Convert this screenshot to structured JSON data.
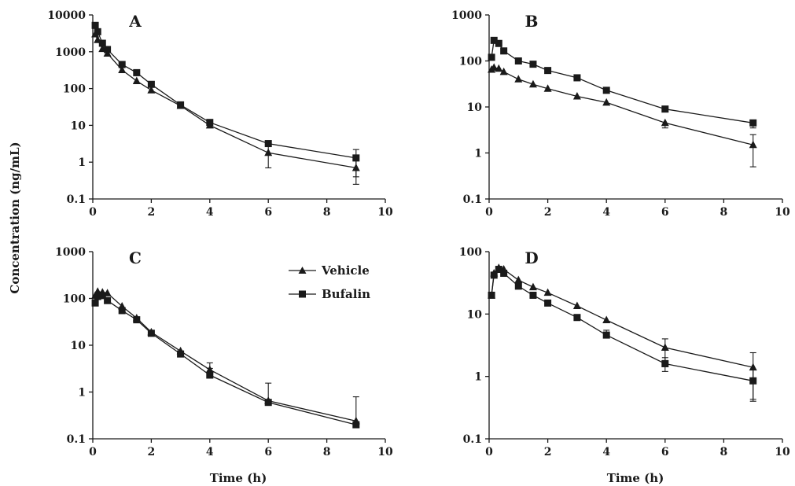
{
  "figure": {
    "y_axis_title": "Concentration (ng/mL)",
    "x_axis_title": "Time (h)"
  },
  "legend": {
    "position": "inside panel C, top-right",
    "entries": [
      {
        "label": "Vehicle",
        "marker": "triangle-icon"
      },
      {
        "label": "Bufalin",
        "marker": "square-icon"
      }
    ]
  },
  "chart_data": [
    {
      "panel": "A",
      "type": "line",
      "y_scale": "log",
      "xlim": [
        0,
        10
      ],
      "ylim": [
        0.1,
        10000
      ],
      "x_ticks": [
        "0",
        "2",
        "4",
        "6",
        "8",
        "10"
      ],
      "y_ticks": [
        "0.1",
        "1",
        "10",
        "100",
        "1000",
        "10000"
      ],
      "series": [
        {
          "name": "Vehicle",
          "marker": "triangle",
          "x": [
            0.083,
            0.167,
            0.33,
            0.5,
            1,
            1.5,
            2,
            3,
            4,
            6,
            9
          ],
          "y": [
            3000,
            2100,
            1200,
            900,
            320,
            160,
            90,
            34,
            10,
            1.8,
            0.7
          ],
          "err": [
            600,
            400,
            200,
            150,
            60,
            25,
            15,
            5,
            1.5,
            1.1,
            0.45
          ]
        },
        {
          "name": "Bufalin",
          "marker": "square",
          "x": [
            0.083,
            0.167,
            0.33,
            0.5,
            1,
            1.5,
            2,
            3,
            4,
            6,
            9
          ],
          "y": [
            5200,
            3500,
            1700,
            1150,
            450,
            270,
            130,
            36,
            12,
            3.2,
            1.3
          ],
          "err": [
            800,
            500,
            250,
            200,
            80,
            40,
            20,
            5,
            2,
            0.5,
            0.9
          ]
        }
      ]
    },
    {
      "panel": "B",
      "type": "line",
      "y_scale": "log",
      "xlim": [
        0,
        10
      ],
      "ylim": [
        0.1,
        1000
      ],
      "x_ticks": [
        "0",
        "2",
        "4",
        "6",
        "8",
        "10"
      ],
      "y_ticks": [
        "0.1",
        "1",
        "10",
        "100",
        "1000"
      ],
      "series": [
        {
          "name": "Vehicle",
          "marker": "triangle",
          "x": [
            0.083,
            0.167,
            0.33,
            0.5,
            1,
            1.5,
            2,
            3,
            4,
            6,
            9
          ],
          "y": [
            65,
            72,
            68,
            58,
            40,
            31,
            25,
            17,
            12.5,
            4.5,
            1.5
          ],
          "err": [
            8,
            8,
            6,
            5,
            4,
            3,
            2.5,
            1.5,
            1.2,
            1,
            1
          ]
        },
        {
          "name": "Bufalin",
          "marker": "square",
          "x": [
            0.083,
            0.167,
            0.33,
            0.5,
            1,
            1.5,
            2,
            3,
            4,
            6,
            9
          ],
          "y": [
            120,
            280,
            240,
            165,
            100,
            85,
            62,
            43,
            23,
            9,
            4.5
          ],
          "err": [
            15,
            30,
            25,
            15,
            10,
            8,
            6,
            5,
            2.5,
            1,
            1
          ]
        }
      ]
    },
    {
      "panel": "C",
      "type": "line",
      "y_scale": "log",
      "xlim": [
        0,
        10
      ],
      "ylim": [
        0.1,
        1000
      ],
      "x_ticks": [
        "0",
        "2",
        "4",
        "6",
        "8",
        "10"
      ],
      "y_ticks": [
        "0.1",
        "1",
        "10",
        "100",
        "1000"
      ],
      "series": [
        {
          "name": "Vehicle",
          "marker": "triangle",
          "x": [
            0.083,
            0.167,
            0.33,
            0.5,
            1,
            1.5,
            2,
            3,
            4,
            6,
            9
          ],
          "y": [
            115,
            140,
            135,
            130,
            68,
            38,
            19,
            7.5,
            3,
            0.65,
            0.24
          ],
          "err": [
            15,
            15,
            12,
            12,
            8,
            5,
            2.5,
            1.5,
            1.2,
            0.9,
            0.55
          ]
        },
        {
          "name": "Bufalin",
          "marker": "square",
          "x": [
            0.083,
            0.167,
            0.33,
            0.5,
            1,
            1.5,
            2,
            3,
            4,
            6,
            9
          ],
          "y": [
            80,
            110,
            115,
            90,
            55,
            35,
            18,
            6.5,
            2.3,
            0.6,
            0.2
          ],
          "err": [
            10,
            12,
            12,
            10,
            6,
            4,
            2,
            1,
            0.9,
            0.1,
            0.03
          ]
        }
      ]
    },
    {
      "panel": "D",
      "type": "line",
      "y_scale": "log",
      "xlim": [
        0,
        10
      ],
      "ylim": [
        0.1,
        100
      ],
      "x_ticks": [
        "0",
        "2",
        "4",
        "6",
        "8",
        "10"
      ],
      "y_ticks": [
        "0.1",
        "1",
        "10",
        "100"
      ],
      "series": [
        {
          "name": "Vehicle",
          "marker": "triangle",
          "x": [
            0.083,
            0.167,
            0.33,
            0.5,
            1,
            1.5,
            2,
            3,
            4,
            6,
            9
          ],
          "y": [
            20,
            45,
            55,
            52,
            35,
            27,
            22,
            13.5,
            8,
            2.9,
            1.4
          ],
          "err": [
            3,
            5,
            5,
            5,
            4,
            3,
            2.5,
            1.5,
            1,
            1.1,
            1
          ]
        },
        {
          "name": "Bufalin",
          "marker": "square",
          "x": [
            0.083,
            0.167,
            0.33,
            0.5,
            1,
            1.5,
            2,
            3,
            4,
            6,
            9
          ],
          "y": [
            20,
            42,
            52,
            45,
            28,
            20,
            15,
            8.8,
            4.6,
            1.6,
            0.85
          ],
          "err": [
            3,
            4,
            5,
            5,
            3,
            2,
            1.5,
            1,
            0.9,
            0.4,
            0.42
          ]
        }
      ]
    }
  ]
}
